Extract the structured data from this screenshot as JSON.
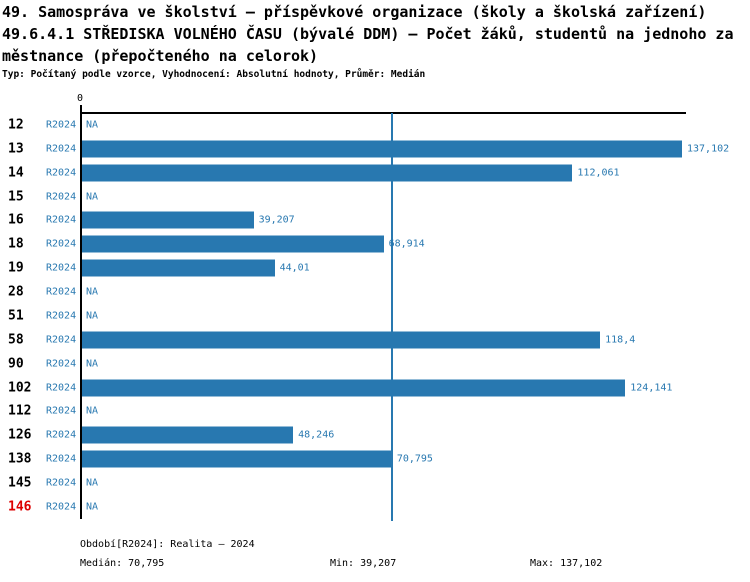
{
  "title": {
    "line1": "49. Samospráva ve školství – příspěvkové organizace (školy a školská zařízení)",
    "line2": "49.6.4.1 STŘEDISKA VOLNÉHO ČASU (bývalé DDM) – Počet žáků, studentů na jednoho za",
    "line3": "městnance (přepočteného na celorok)",
    "meta": "Typ: Počítaný podle vzorce, Vyhodnocení: Absolutní hodnoty, Průměr: Medián"
  },
  "chart_data": {
    "type": "bar",
    "orientation": "horizontal",
    "axis_zero_label": "0",
    "period_tag": "R2024",
    "na_label": "NA",
    "categories": [
      "12",
      "13",
      "14",
      "15",
      "16",
      "18",
      "19",
      "28",
      "51",
      "58",
      "90",
      "102",
      "112",
      "126",
      "138",
      "145",
      "146"
    ],
    "values": [
      null,
      137.102,
      112.061,
      null,
      39.207,
      68.914,
      44.01,
      null,
      null,
      118.4,
      null,
      124.141,
      null,
      48.246,
      70.795,
      null,
      null
    ],
    "value_labels": [
      "NA",
      "137,102",
      "112,061",
      "NA",
      "39,207",
      "68,914",
      "44,01",
      "NA",
      "NA",
      "118,4",
      "NA",
      "124,141",
      "NA",
      "48,246",
      "70,795",
      "NA",
      "NA"
    ],
    "xlim": [
      0,
      137.102
    ],
    "median_value": 70.795,
    "highlight_index": 16,
    "legend_position": "none",
    "grid": false,
    "colors": {
      "bar": "#2878b0",
      "median_line": "#2878b0",
      "blue_text": "#2878b0",
      "axis": "#000000",
      "category_text": "#000000",
      "highlight_text": "#dd0000"
    }
  },
  "footer": {
    "period": "Období[R2024]: Realita – 2024",
    "median": "Medián: 70,795",
    "min": "Min: 39,207",
    "max": "Max: 137,102"
  }
}
